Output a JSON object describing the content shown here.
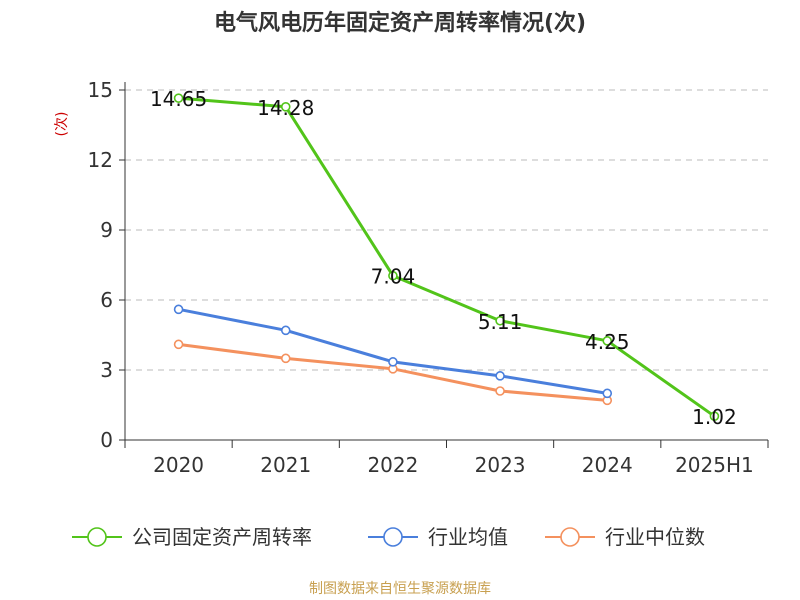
{
  "chart_data": {
    "type": "line",
    "title": "电气风电历年固定资产周转率情况(次)",
    "ylabel": "(次)",
    "xlabel": "",
    "categories": [
      "2020",
      "2021",
      "2022",
      "2023",
      "2024",
      "2025H1"
    ],
    "ylim": [
      0,
      15
    ],
    "yticks": [
      0,
      3,
      6,
      9,
      12,
      15
    ],
    "grid": true,
    "legend_position": "bottom",
    "series": [
      {
        "name": "公司固定资产周转率",
        "color": "#52c41a",
        "values": [
          14.65,
          14.28,
          7.04,
          5.11,
          4.25,
          1.02
        ],
        "labels": [
          "14.65",
          "14.28",
          "7.04",
          "5.11",
          "4.25",
          "1.02"
        ]
      },
      {
        "name": "行业均值",
        "color": "#4a7fdc",
        "values": [
          5.6,
          4.7,
          3.35,
          2.75,
          2.0,
          null
        ]
      },
      {
        "name": "行业中位数",
        "color": "#f4915e",
        "values": [
          4.1,
          3.5,
          3.05,
          2.1,
          1.7,
          null
        ]
      }
    ],
    "source": "制图数据来自恒生聚源数据库"
  }
}
